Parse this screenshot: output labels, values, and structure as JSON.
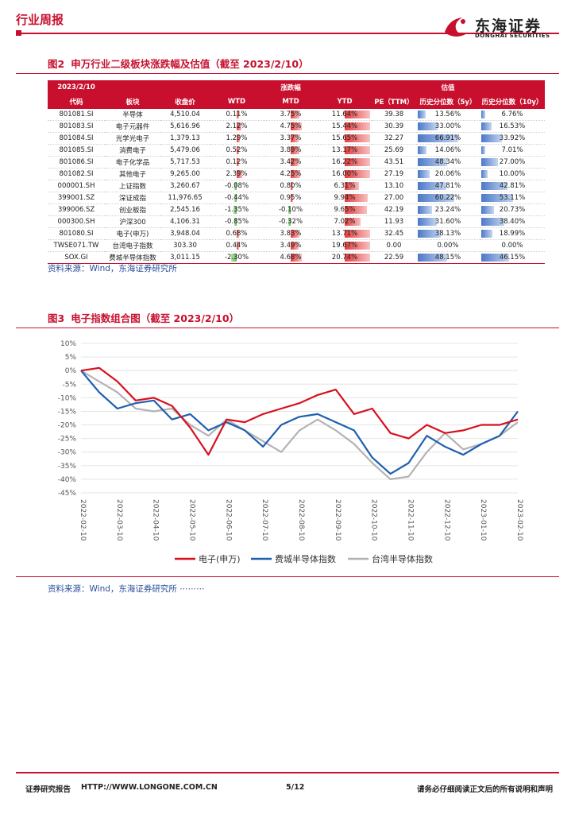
{
  "header": {
    "section": "行业周报",
    "logo_cn": "东海证券",
    "logo_en": "DONGHAI SECURITIES"
  },
  "figure2": {
    "title_num": "图2",
    "title": "申万行业二级板块涨跌幅及估值（截至 2023/2/10）",
    "header_row1": {
      "date": "2023/2/10",
      "change": "涨跌幅",
      "valuation": "估值"
    },
    "header_row2": {
      "code": "代码",
      "sector": "板块",
      "close": "收盘价",
      "wtd": "WTD",
      "mtd": "MTD",
      "ytd": "YTD",
      "pe": "PE（TTM）",
      "pct5": "历史分位数（5y）",
      "pct10": "历史分位数（10y）"
    },
    "rows": [
      {
        "code": "801081.SI",
        "name": "半导体",
        "close": "4,510.04",
        "wtd": "0.11%",
        "mtd": "3.75%",
        "ytd": "11.64%",
        "pe": "39.38",
        "p5": "13.56%",
        "p10": "6.76%",
        "wtd_v": 0.11,
        "mtd_v": 3.75,
        "ytd_v": 11.64,
        "p5_v": 13.56,
        "p10_v": 6.76
      },
      {
        "code": "801083.SI",
        "name": "电子元器件",
        "close": "5,616.96",
        "wtd": "2.12%",
        "mtd": "4.75%",
        "ytd": "15.44%",
        "pe": "30.39",
        "p5": "33.00%",
        "p10": "16.53%",
        "wtd_v": 2.12,
        "mtd_v": 4.75,
        "ytd_v": 15.44,
        "p5_v": 33.0,
        "p10_v": 16.53
      },
      {
        "code": "801084.SI",
        "name": "光学光电子",
        "close": "1,379.13",
        "wtd": "1.29%",
        "mtd": "3.37%",
        "ytd": "15.65%",
        "pe": "32.27",
        "p5": "66.91%",
        "p10": "33.92%",
        "wtd_v": 1.29,
        "mtd_v": 3.37,
        "ytd_v": 15.65,
        "p5_v": 66.91,
        "p10_v": 33.92
      },
      {
        "code": "801085.SI",
        "name": "消费电子",
        "close": "5,479.06",
        "wtd": "0.52%",
        "mtd": "3.89%",
        "ytd": "13.17%",
        "pe": "25.69",
        "p5": "14.06%",
        "p10": "7.01%",
        "wtd_v": 0.52,
        "mtd_v": 3.89,
        "ytd_v": 13.17,
        "p5_v": 14.06,
        "p10_v": 7.01
      },
      {
        "code": "801086.SI",
        "name": "电子化学品",
        "close": "5,717.53",
        "wtd": "0.12%",
        "mtd": "3.42%",
        "ytd": "16.22%",
        "pe": "43.51",
        "p5": "48.34%",
        "p10": "27.00%",
        "wtd_v": 0.12,
        "mtd_v": 3.42,
        "ytd_v": 16.22,
        "p5_v": 48.34,
        "p10_v": 27.0
      },
      {
        "code": "801082.SI",
        "name": "其他电子",
        "close": "9,265.00",
        "wtd": "2.39%",
        "mtd": "4.25%",
        "ytd": "16.00%",
        "pe": "27.19",
        "p5": "20.06%",
        "p10": "10.00%",
        "wtd_v": 2.39,
        "mtd_v": 4.25,
        "ytd_v": 16.0,
        "p5_v": 20.06,
        "p10_v": 10.0
      },
      {
        "code": "000001.SH",
        "name": "上证指数",
        "close": "3,260.67",
        "wtd": "-0.08%",
        "mtd": "0.80%",
        "ytd": "6.31%",
        "pe": "13.10",
        "p5": "47.81%",
        "p10": "42.81%",
        "wtd_v": -0.08,
        "mtd_v": 0.8,
        "ytd_v": 6.31,
        "p5_v": 47.81,
        "p10_v": 42.81
      },
      {
        "code": "399001.SZ",
        "name": "深证成指",
        "close": "11,976.65",
        "wtd": "-0.44%",
        "mtd": "0.95%",
        "ytd": "9.94%",
        "pe": "27.00",
        "p5": "60.22%",
        "p10": "53.11%",
        "wtd_v": -0.44,
        "mtd_v": 0.95,
        "ytd_v": 9.94,
        "p5_v": 60.22,
        "p10_v": 53.11
      },
      {
        "code": "399006.SZ",
        "name": "创业板指",
        "close": "2,545.16",
        "wtd": "-1.35%",
        "mtd": "-0.10%",
        "ytd": "9.65%",
        "pe": "42.19",
        "p5": "23.24%",
        "p10": "20.73%",
        "wtd_v": -1.35,
        "mtd_v": -0.1,
        "ytd_v": 9.65,
        "p5_v": 23.24,
        "p10_v": 20.73
      },
      {
        "code": "000300.SH",
        "name": "沪深300",
        "close": "4,106.31",
        "wtd": "-0.85%",
        "mtd": "-0.32%",
        "ytd": "7.02%",
        "pe": "11.93",
        "p5": "31.60%",
        "p10": "38.40%",
        "wtd_v": -0.85,
        "mtd_v": -0.32,
        "ytd_v": 7.02,
        "p5_v": 31.6,
        "p10_v": 38.4
      },
      {
        "code": "801080.SI",
        "name": "电子(申万)",
        "close": "3,948.04",
        "wtd": "0.68%",
        "mtd": "3.83%",
        "ytd": "13.71%",
        "pe": "32.45",
        "p5": "38.13%",
        "p10": "18.99%",
        "wtd_v": 0.68,
        "mtd_v": 3.83,
        "ytd_v": 13.71,
        "p5_v": 38.13,
        "p10_v": 18.99
      },
      {
        "code": "TWSE071.TW",
        "name": "台湾电子指数",
        "close": "303.30",
        "wtd": "0.44%",
        "mtd": "3.49%",
        "ytd": "19.67%",
        "pe": "0.00",
        "p5": "0.00%",
        "p10": "0.00%",
        "wtd_v": 0.44,
        "mtd_v": 3.49,
        "ytd_v": 19.67,
        "p5_v": 0,
        "p10_v": 0
      },
      {
        "code": "SOX.GI",
        "name": "费城半导体指数",
        "close": "3,011.15",
        "wtd": "-2.30%",
        "mtd": "4.68%",
        "ytd": "20.74%",
        "pe": "22.59",
        "p5": "48.15%",
        "p10": "46.15%",
        "wtd_v": -2.3,
        "mtd_v": 4.68,
        "ytd_v": 20.74,
        "p5_v": 48.15,
        "p10_v": 46.15
      }
    ],
    "source": "资料来源：Wind，东海证券研究所"
  },
  "figure3": {
    "title_num": "图3",
    "title": "电子指数组合图（截至 2023/2/10）",
    "source": "资料来源：Wind，东海证券研究所 ⋯⋯⋯"
  },
  "chart_data": {
    "type": "line",
    "title": "电子指数组合图（截至 2023/2/10）",
    "x": [
      "2022-02-10",
      "2022-02-25",
      "2022-03-10",
      "2022-03-25",
      "2022-04-10",
      "2022-04-25",
      "2022-05-10",
      "2022-05-25",
      "2022-06-10",
      "2022-06-25",
      "2022-07-10",
      "2022-07-25",
      "2022-08-10",
      "2022-08-25",
      "2022-09-10",
      "2022-09-25",
      "2022-10-10",
      "2022-10-25",
      "2022-11-10",
      "2022-11-25",
      "2022-12-10",
      "2022-12-25",
      "2023-01-10",
      "2023-01-25",
      "2023-02-10"
    ],
    "tick_labels": [
      "2022-02-10",
      "2022-03-10",
      "2022-04-10",
      "2022-05-10",
      "2022-06-10",
      "2022-07-10",
      "2022-08-10",
      "2022-09-10",
      "2022-10-10",
      "2022-11-10",
      "2022-12-10",
      "2023-01-10",
      "2023-02-10"
    ],
    "series": [
      {
        "name": "电子(申万)",
        "color": "#d8101e",
        "values": [
          0,
          1,
          -4,
          -11,
          -10,
          -13,
          -21,
          -31,
          -18,
          -19,
          -16,
          -14,
          -12,
          -9,
          -7,
          -16,
          -14,
          -23,
          -25,
          -20,
          -23,
          -22,
          -20,
          -20,
          -18
        ]
      },
      {
        "name": "费城半导体指数",
        "color": "#1f5fb0",
        "values": [
          0,
          -8,
          -14,
          -12,
          -11,
          -18,
          -16,
          -22,
          -19,
          -22,
          -28,
          -20,
          -17,
          -16,
          -19,
          -22,
          -32,
          -38,
          -34,
          -24,
          -28,
          -31,
          -27,
          -24,
          -15
        ]
      },
      {
        "name": "台湾半导体指数",
        "color": "#b3b3b3",
        "values": [
          0,
          -4,
          -8,
          -14,
          -15,
          -14,
          -20,
          -24,
          -18,
          -22,
          -26,
          -30,
          -22,
          -18,
          -22,
          -27,
          -34,
          -40,
          -39,
          -30,
          -23,
          -29,
          -27,
          -24,
          -19
        ]
      }
    ],
    "ylim": [
      -45,
      10
    ],
    "yticks": [
      "10%",
      "5%",
      "0%",
      "-5%",
      "-10%",
      "-15%",
      "-20%",
      "-25%",
      "-30%",
      "-35%",
      "-40%",
      "-45%"
    ],
    "legend": "bottom"
  },
  "footer": {
    "left": "证券研究报告",
    "url": "HTTP://WWW.LONGONE.COM.CN",
    "page": "5/12",
    "right": "请务必仔细阅读正文后的所有说明和声明"
  }
}
